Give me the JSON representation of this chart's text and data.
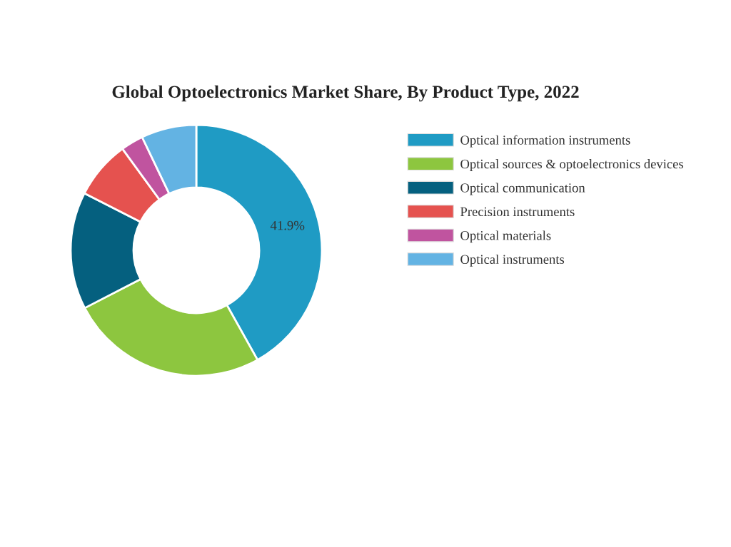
{
  "chart_data": {
    "type": "donut",
    "title": "Global Optoelectronics Market Share, By Product Type, 2022",
    "categories": [
      "Optical information instruments",
      "Optical sources & optoelectronics devices",
      "Optical communication",
      "Precision instruments",
      "Optical materials",
      "Optical instruments"
    ],
    "values": [
      41.9,
      25.5,
      15.1,
      7.5,
      2.9,
      7.1
    ],
    "colors": [
      "#1f9bc4",
      "#8dc63f",
      "#05607f",
      "#e5524f",
      "#c0549f",
      "#63b3e3"
    ],
    "value_labels": [
      "41.9%",
      null,
      null,
      null,
      null,
      null
    ],
    "legend": "right"
  }
}
